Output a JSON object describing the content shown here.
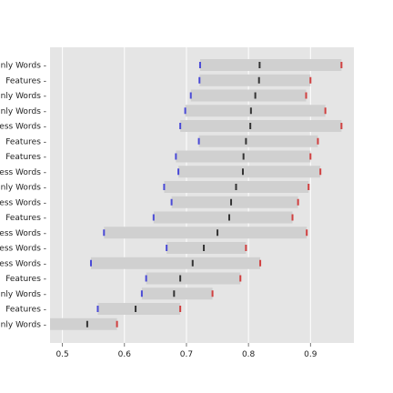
{
  "chart_data": {
    "type": "bar",
    "orientation": "horizontal",
    "title": "",
    "xlabel": "",
    "ylabel": "",
    "xlim": [
      0.48,
      0.97
    ],
    "xticks": [
      0.5,
      0.6,
      0.7,
      0.8,
      0.9
    ],
    "xtick_labels": [
      "0.5",
      "0.6",
      "0.7",
      "0.8",
      "0.9"
    ],
    "grid": true,
    "colors": {
      "background": "#e5e5e5",
      "grid": "#ffffff",
      "bar": "#d0d0d0",
      "min_marker": "#4a4ad6",
      "mean_marker": "#333333",
      "max_marker": "#d04040"
    },
    "categories": [
      "nly Words",
      "Features",
      "nly Words",
      "nly Words",
      "ess Words",
      "Features",
      "Features",
      "ess Words",
      "nly Words",
      "ess Words",
      "Features",
      "ess Words",
      "ess Words",
      "ess Words",
      "Features",
      "nly Words",
      "Features",
      "nly Words"
    ],
    "min": [
      0.722,
      0.721,
      0.707,
      0.698,
      0.69,
      0.72,
      0.683,
      0.687,
      0.664,
      0.676,
      0.647,
      0.567,
      0.668,
      0.546,
      0.635,
      0.628,
      0.557,
      0.45
    ],
    "mean": [
      0.818,
      0.817,
      0.811,
      0.804,
      0.803,
      0.796,
      0.792,
      0.791,
      0.78,
      0.772,
      0.769,
      0.75,
      0.728,
      0.71,
      0.69,
      0.68,
      0.618,
      0.54
    ],
    "max": [
      0.95,
      0.9,
      0.893,
      0.924,
      0.95,
      0.912,
      0.9,
      0.916,
      0.897,
      0.88,
      0.871,
      0.894,
      0.796,
      0.819,
      0.787,
      0.742,
      0.69,
      0.588
    ]
  }
}
